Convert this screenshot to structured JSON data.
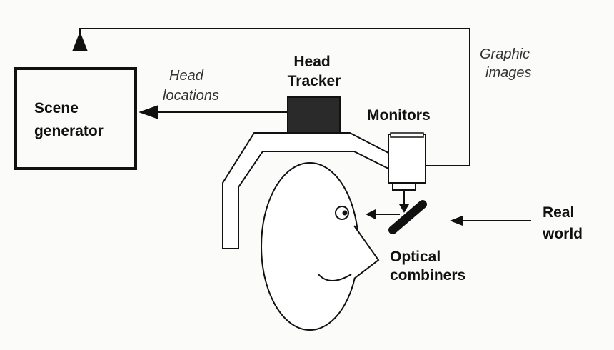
{
  "labels": {
    "scene_generator": [
      "Scene",
      "generator"
    ],
    "head_locations": [
      "Head",
      "locations"
    ],
    "head_tracker": [
      "Head",
      "Tracker"
    ],
    "graphic_images": [
      "Graphic",
      "images"
    ],
    "monitors": "Monitors",
    "real_world": [
      "Real",
      "world"
    ],
    "optical_combiners": [
      "Optical",
      "combiners"
    ]
  },
  "colors": {
    "ink": "#111111",
    "tracker_fill": "#2a2a2a",
    "paper": "#fbfbfa"
  }
}
